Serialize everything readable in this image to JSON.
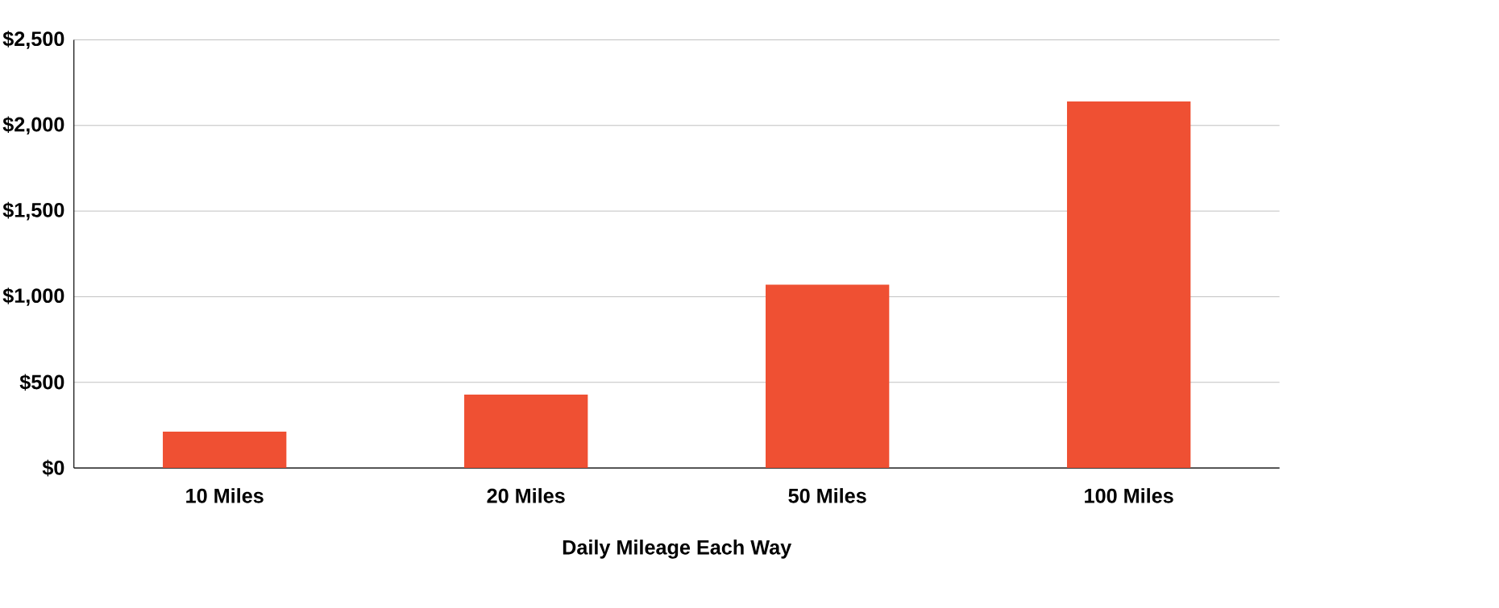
{
  "chart_data": {
    "type": "bar",
    "xlabel": "Daily Mileage Each Way",
    "categories": [
      "10 Miles",
      "20 Miles",
      "50 Miles",
      "100 Miles"
    ],
    "values": [
      212,
      428,
      1070,
      2140
    ],
    "color": "#ef5033",
    "ylim": [
      0,
      2500
    ],
    "yticks": [
      {
        "value": 0,
        "label": "$0"
      },
      {
        "value": 500,
        "label": "$500"
      },
      {
        "value": 1000,
        "label": "$1,000"
      },
      {
        "value": 1500,
        "label": "$1,500"
      },
      {
        "value": 2000,
        "label": "$2,000"
      },
      {
        "value": 2500,
        "label": "$2,500"
      }
    ],
    "grid": "y"
  }
}
